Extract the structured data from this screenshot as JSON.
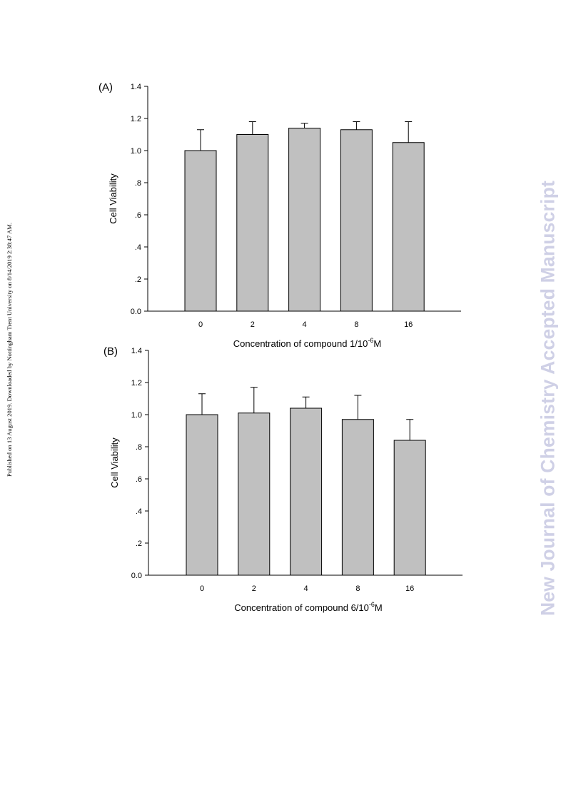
{
  "side_note": "Published on 13 August 2019. Downloaded by Nottingham Trent University on 8/14/2019 2:38:47 AM.",
  "watermark": "New Journal of Chemistry Accepted Manuscript",
  "chart_data": [
    {
      "type": "bar",
      "panel_label": "(A)",
      "categories": [
        "0",
        "2",
        "4",
        "8",
        "16"
      ],
      "values": [
        1.0,
        1.1,
        1.14,
        1.13,
        1.05
      ],
      "errors": [
        0.13,
        0.08,
        0.03,
        0.05,
        0.13
      ],
      "ylabel": "Cell Viability",
      "xlabel": {
        "prefix": "Concentration of compound 1/10",
        "sup": "-6",
        "suffix": "M"
      },
      "ylim": [
        0,
        1.4
      ],
      "yticks": [
        0,
        0.2,
        0.4,
        0.6,
        0.8,
        1.0,
        1.2,
        1.4
      ],
      "ytick_labels": [
        "0.0",
        ".2",
        ".4",
        ".6",
        ".8",
        "1.0",
        "1.2",
        "1.4"
      ],
      "bar_color": "#c0c0c0",
      "grid": false
    },
    {
      "type": "bar",
      "panel_label": "(B)",
      "categories": [
        "0",
        "2",
        "4",
        "8",
        "16"
      ],
      "values": [
        1.0,
        1.01,
        1.04,
        0.97,
        0.84
      ],
      "errors": [
        0.13,
        0.16,
        0.07,
        0.15,
        0.13
      ],
      "ylabel": "Cell Viability",
      "xlabel": {
        "prefix": "Concentration of compound 6/10",
        "sup": "-6",
        "suffix": "M"
      },
      "ylim": [
        0,
        1.4
      ],
      "yticks": [
        0,
        0.2,
        0.4,
        0.6,
        0.8,
        1.0,
        1.2,
        1.4
      ],
      "ytick_labels": [
        "0.0",
        ".2",
        ".4",
        ".6",
        ".8",
        "1.0",
        "1.2",
        "1.4"
      ],
      "bar_color": "#c0c0c0",
      "grid": false
    }
  ]
}
